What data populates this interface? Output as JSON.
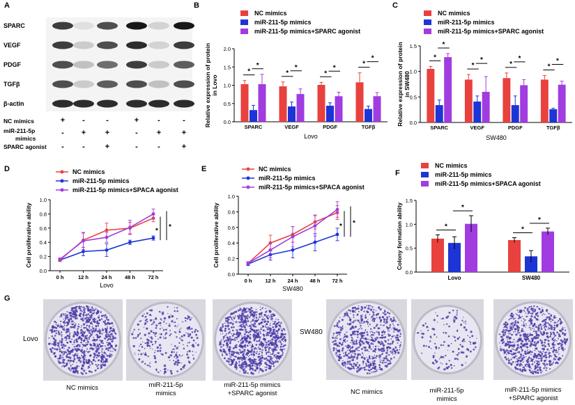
{
  "panel_letters": [
    "A",
    "B",
    "C",
    "D",
    "E",
    "F",
    "G"
  ],
  "colors": {
    "nc": "#e8413e",
    "mir": "#1d34d6",
    "agonist": "#a03ce0",
    "axis": "#000000",
    "dish_dye": "#4a3ba8",
    "dish_bg": "#e8e6f0"
  },
  "panel_a": {
    "proteins": [
      "SPARC",
      "VEGF",
      "PDGF",
      "TGFβ",
      "β-actin"
    ],
    "conditions": [
      {
        "label": "NC mimics",
        "signs": [
          "+",
          "-",
          "-",
          "+",
          "-",
          "-"
        ]
      },
      {
        "label": "miR-211-5p",
        "label2": "mimics",
        "signs": [
          "-",
          "+",
          "+",
          "-",
          "+",
          "+"
        ]
      },
      {
        "label": "SPARC agonist",
        "signs": [
          "-",
          "-",
          "+",
          "-",
          "-",
          "+"
        ]
      }
    ],
    "band_intensity": [
      [
        0.85,
        0.15,
        0.8,
        0.95,
        0.25,
        0.95
      ],
      [
        0.85,
        0.3,
        0.8,
        0.9,
        0.25,
        0.85
      ],
      [
        0.8,
        0.35,
        0.7,
        0.85,
        0.3,
        0.75
      ],
      [
        0.8,
        0.3,
        0.75,
        0.8,
        0.35,
        0.8
      ],
      [
        0.9,
        0.9,
        0.9,
        0.9,
        0.9,
        0.9
      ]
    ]
  },
  "chart_data": [
    {
      "id": "B",
      "type": "bar",
      "legend": [
        "NC mimics",
        "miR-211-5p mimics",
        "miR-211-5p mimics+SPARC agonist"
      ],
      "ylabel": "Relative expression of protein",
      "ylabel2": "in Lovo",
      "xlabel": "Lovo",
      "categories": [
        "SPARC",
        "VEGF",
        "PDGF",
        "TGFβ"
      ],
      "ylim": [
        0,
        2.0
      ],
      "yticks": [
        "0.0",
        "0.5",
        "1.0",
        "1.5",
        "2.0"
      ],
      "series": [
        {
          "name": "NC mimics",
          "values": [
            1.03,
            0.97,
            1.01,
            1.08
          ],
          "err": [
            0.1,
            0.12,
            0.07,
            0.26
          ]
        },
        {
          "name": "miR-211-5p mimics",
          "values": [
            0.32,
            0.42,
            0.44,
            0.35
          ],
          "err": [
            0.13,
            0.12,
            0.08,
            0.08
          ]
        },
        {
          "name": "miR-211-5p mimics+SPARC agonist",
          "values": [
            1.03,
            0.76,
            0.7,
            0.7
          ],
          "err": [
            0.27,
            0.14,
            0.11,
            0.1
          ]
        }
      ],
      "sig_label": "*"
    },
    {
      "id": "C",
      "type": "bar",
      "legend": [
        "NC mimics",
        "miR-211-5p mimics",
        "miR-211-5p mimics+SPARC agonist"
      ],
      "ylabel": "Relative expression of protein",
      "ylabel2": "in SW480",
      "xlabel": "SW480",
      "categories": [
        "SPARC",
        "VEGF",
        "PDGF",
        "TGFβ"
      ],
      "ylim": [
        0,
        1.5
      ],
      "yticks": [
        "0.0",
        "0.5",
        "1.0",
        "1.5"
      ],
      "series": [
        {
          "name": "NC mimics",
          "values": [
            1.05,
            0.84,
            0.87,
            0.84
          ],
          "err": [
            0.05,
            0.1,
            0.1,
            0.08
          ]
        },
        {
          "name": "miR-211-5p mimics",
          "values": [
            0.34,
            0.41,
            0.34,
            0.26
          ],
          "err": [
            0.1,
            0.11,
            0.18,
            0.02
          ]
        },
        {
          "name": "miR-211-5p mimics+SPARC agonist",
          "values": [
            1.28,
            0.6,
            0.73,
            0.74
          ],
          "err": [
            0.07,
            0.3,
            0.11,
            0.07
          ]
        }
      ],
      "sig_label": "*"
    },
    {
      "id": "D",
      "type": "line",
      "legend": [
        "NC mimics",
        "miR-211-5p mimics",
        "miR-211-5p mimics+SPACA agonist"
      ],
      "ylabel": "Cell proliferative ability",
      "xlabel": "Lovo",
      "x": [
        "0 h",
        "12 h",
        "24 h",
        "48 h",
        "72 h"
      ],
      "ylim": [
        0,
        1.0
      ],
      "yticks": [
        "0.0",
        "0.2",
        "0.4",
        "0.6",
        "0.8",
        "1.0"
      ],
      "series": [
        {
          "name": "NC mimics",
          "values": [
            0.15,
            0.43,
            0.57,
            0.6,
            0.74
          ],
          "err": [
            0.02,
            0.1,
            0.1,
            0.08,
            0.05
          ]
        },
        {
          "name": "miR-211-5p mimics",
          "values": [
            0.15,
            0.27,
            0.29,
            0.4,
            0.46
          ],
          "err": [
            0.02,
            0.06,
            0.09,
            0.03,
            0.03
          ]
        },
        {
          "name": "miR-211-5p mimics+SPACA agonist",
          "values": [
            0.16,
            0.42,
            0.47,
            0.61,
            0.8
          ],
          "err": [
            0.02,
            0.12,
            0.07,
            0.1,
            0.07
          ]
        }
      ],
      "sig_label": "*"
    },
    {
      "id": "E",
      "type": "line",
      "legend": [
        "NC mimics",
        "miR-211-5p mimics",
        "miR-211-5p mimics+SPACA agonist"
      ],
      "ylabel": "Cell proliferative ability",
      "xlabel": "SW480",
      "x": [
        "0 h",
        "12 h",
        "24 h",
        "48 h",
        "72 h"
      ],
      "ylim": [
        0,
        1.0
      ],
      "yticks": [
        "0.0",
        "0.2",
        "0.4",
        "0.6",
        "0.8",
        "1.0"
      ],
      "series": [
        {
          "name": "NC mimics",
          "values": [
            0.14,
            0.4,
            0.51,
            0.67,
            0.79
          ],
          "err": [
            0.02,
            0.1,
            0.1,
            0.09,
            0.09
          ]
        },
        {
          "name": "miR-211-5p mimics",
          "values": [
            0.13,
            0.25,
            0.31,
            0.41,
            0.51
          ],
          "err": [
            0.02,
            0.07,
            0.1,
            0.11,
            0.08
          ]
        },
        {
          "name": "miR-211-5p mimics+SPACA agonist",
          "values": [
            0.14,
            0.31,
            0.48,
            0.62,
            0.83
          ],
          "err": [
            0.02,
            0.1,
            0.13,
            0.13,
            0.1
          ]
        }
      ],
      "sig_label": "*"
    },
    {
      "id": "F",
      "type": "bar",
      "legend": [
        "NC mimics",
        "miR-211-5p mimics",
        "miR-211-5p mimics+SPACA agonist"
      ],
      "ylabel": "Colony formation ability",
      "categories": [
        "Lovo",
        "SW480"
      ],
      "ylim": [
        0,
        1.5
      ],
      "yticks": [
        "0.0",
        "0.5",
        "1.0",
        "1.5"
      ],
      "series": [
        {
          "name": "NC mimics",
          "values": [
            0.7,
            0.67
          ],
          "err": [
            0.08,
            0.05
          ]
        },
        {
          "name": "miR-211-5p mimics",
          "values": [
            0.61,
            0.33
          ],
          "err": [
            0.13,
            0.12
          ]
        },
        {
          "name": "miR-211-5p mimics+SPACA agonist",
          "values": [
            1.01,
            0.85
          ],
          "err": [
            0.17,
            0.07
          ]
        }
      ],
      "sig_label": "*"
    }
  ],
  "panel_g": {
    "rows": [
      {
        "cell_line": "Lovo",
        "captions": [
          [
            "NC mimics"
          ],
          [
            "miR-211-5p",
            "mimics"
          ],
          [
            "miR-211-5p mimics",
            "+SPARC agonist"
          ]
        ],
        "density": [
          900,
          280,
          1000
        ]
      },
      {
        "cell_line": "SW480",
        "captions": [
          [
            "NC mimics"
          ],
          [
            "miR-211-5p",
            "mimics"
          ],
          [
            "miR-211-5p mimics",
            "+SPARC agonist"
          ]
        ],
        "density": [
          700,
          140,
          800
        ]
      }
    ]
  }
}
